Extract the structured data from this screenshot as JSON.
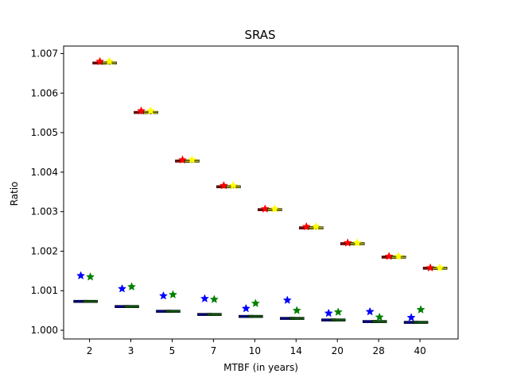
{
  "chart_data": {
    "type": "box",
    "title": "SRAS",
    "xlabel": "MTBF (in years)",
    "ylabel": "Ratio",
    "categories": [
      "2",
      "3",
      "5",
      "7",
      "10",
      "14",
      "20",
      "28",
      "40"
    ],
    "y_ticks": [
      "1.000",
      "1.001",
      "1.002",
      "1.003",
      "1.004",
      "1.005",
      "1.006",
      "1.007"
    ],
    "ylim": [
      0.99978,
      1.00719
    ],
    "grid": false,
    "legend": "none",
    "series": [
      {
        "color": "#0000ff",
        "medians": [
          1.00073,
          1.0006,
          1.00048,
          1.0004,
          1.00035,
          1.0003,
          1.00026,
          1.00022,
          1.0002
        ],
        "means": [
          1.00138,
          1.00105,
          1.00087,
          1.0008,
          1.00055,
          1.00076,
          1.00043,
          1.00047,
          1.00032
        ]
      },
      {
        "color": "#008000",
        "medians": [
          1.00073,
          1.0006,
          1.00048,
          1.0004,
          1.00035,
          1.0003,
          1.00026,
          1.00022,
          1.0002
        ],
        "means": [
          1.00135,
          1.0011,
          1.0009,
          1.00078,
          1.00068,
          1.0005,
          1.00046,
          1.00033,
          1.00052
        ]
      },
      {
        "color": "#ff0000",
        "medians": [
          1.00676,
          1.00551,
          1.00428,
          1.00363,
          1.00305,
          1.00259,
          1.00219,
          1.00185,
          1.00157
        ],
        "means": [
          1.0068,
          1.00555,
          1.00431,
          1.00366,
          1.00307,
          1.00262,
          1.00221,
          1.00187,
          1.00158
        ]
      },
      {
        "color": "#ffff00",
        "medians": [
          1.00676,
          1.00551,
          1.00428,
          1.00363,
          1.00305,
          1.00259,
          1.00219,
          1.00185,
          1.00157
        ],
        "means": [
          1.0068,
          1.00555,
          1.00431,
          1.00366,
          1.00307,
          1.00262,
          1.00221,
          1.00187,
          1.00158
        ]
      }
    ]
  }
}
